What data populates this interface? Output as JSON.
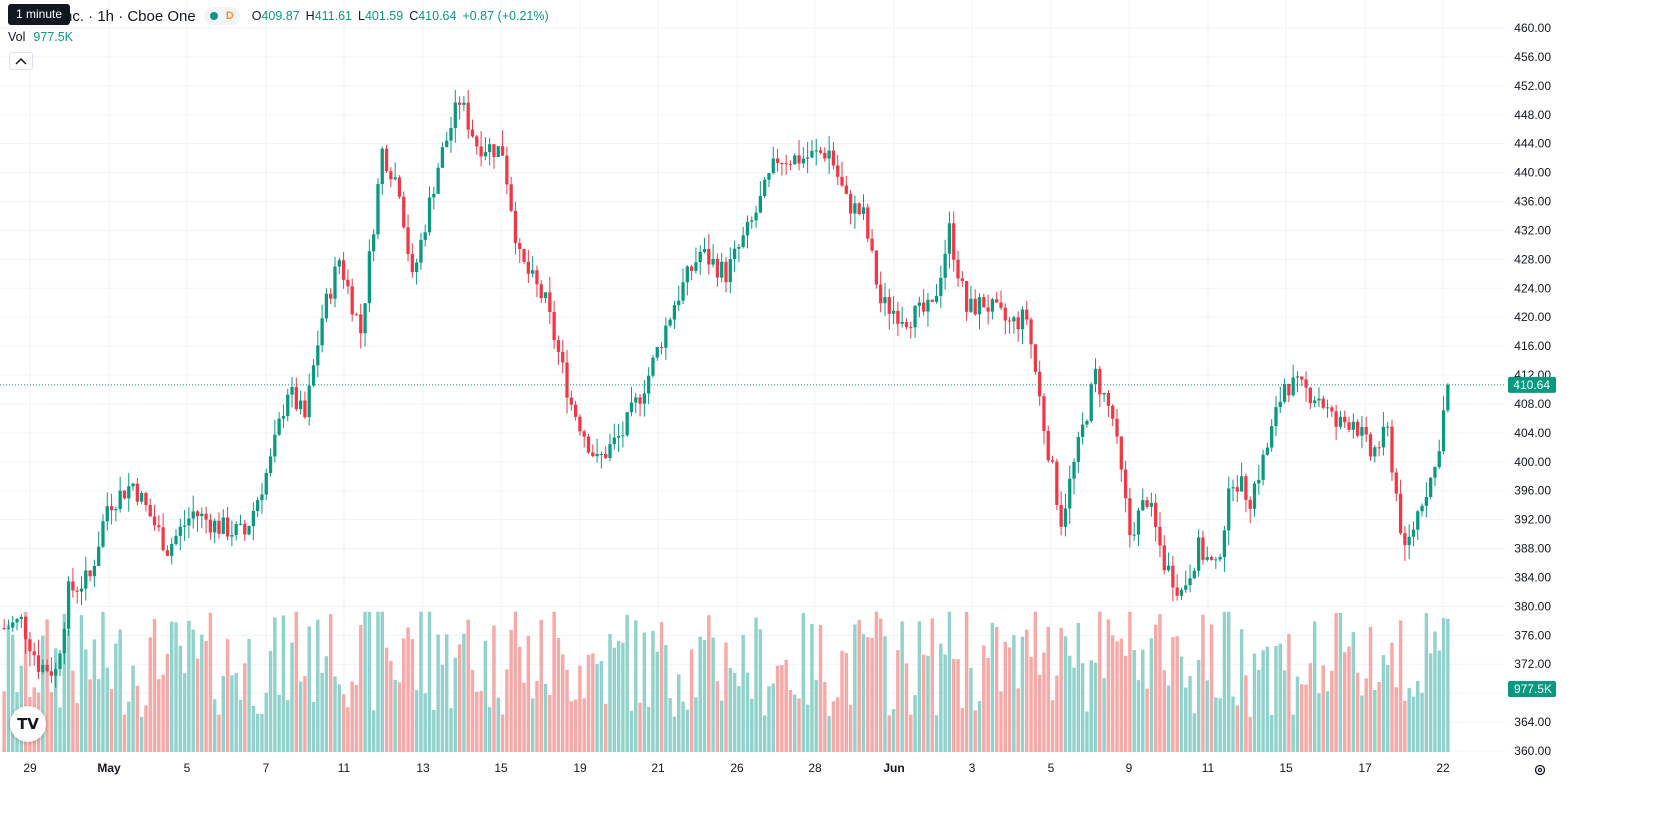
{
  "tooltip": {
    "interval_label": "1 minute"
  },
  "legend": {
    "title": "nc. · 1h · Cboe One",
    "dot_status": "market-open-dot",
    "d_label": "D",
    "open_label": "O",
    "open": "409.87",
    "high_label": "H",
    "high": "411.61",
    "low_label": "L",
    "low": "401.59",
    "close_label": "C",
    "close": "410.64",
    "change": "+0.87 (+0.21%)"
  },
  "volume_legend": {
    "label": "Vol",
    "value": "977.5K"
  },
  "collapse_icon": "chevron-up-icon",
  "logo": {
    "text": "TV"
  },
  "price_axis": {
    "ticks": [
      "460.00",
      "456.00",
      "452.00",
      "448.00",
      "444.00",
      "440.00",
      "436.00",
      "432.00",
      "428.00",
      "424.00",
      "420.00",
      "416.00",
      "412.00",
      "408.00",
      "404.00",
      "400.00",
      "396.00",
      "392.00",
      "388.00",
      "384.00",
      "380.00",
      "376.00",
      "372.00",
      "368.00",
      "364.00",
      "360.00"
    ],
    "last_price_label": "410.64",
    "last_volume_label": "977.5K"
  },
  "time_axis": {
    "labels": [
      "29",
      "May",
      "5",
      "7",
      "11",
      "13",
      "15",
      "19",
      "21",
      "26",
      "28",
      "Jun",
      "3",
      "5",
      "9",
      "11",
      "15",
      "17",
      "22"
    ],
    "bold_labels": [
      "May",
      "Jun"
    ]
  },
  "colors": {
    "up": "#089981",
    "down": "#f23645",
    "vol_up": "#92d2cc",
    "vol_down": "#f7a9a7",
    "grid": "#f0f3fa",
    "axis_bg": "#ffffff",
    "last_price": "#089981"
  },
  "chart_data": {
    "type": "candlestick",
    "timeframe": "1h",
    "ylim": [
      360,
      460
    ],
    "last_price": 410.64,
    "anchors": [
      {
        "i": 0,
        "p": 377
      },
      {
        "i": 4,
        "p": 378
      },
      {
        "i": 8,
        "p": 372
      },
      {
        "i": 12,
        "p": 371
      },
      {
        "i": 15,
        "p": 382
      },
      {
        "i": 20,
        "p": 384
      },
      {
        "i": 24,
        "p": 394
      },
      {
        "i": 30,
        "p": 397
      },
      {
        "i": 38,
        "p": 388
      },
      {
        "i": 44,
        "p": 393
      },
      {
        "i": 50,
        "p": 391
      },
      {
        "i": 56,
        "p": 390
      },
      {
        "i": 62,
        "p": 400
      },
      {
        "i": 66,
        "p": 410
      },
      {
        "i": 70,
        "p": 406
      },
      {
        "i": 74,
        "p": 420
      },
      {
        "i": 78,
        "p": 428
      },
      {
        "i": 83,
        "p": 418
      },
      {
        "i": 88,
        "p": 443
      },
      {
        "i": 92,
        "p": 438
      },
      {
        "i": 95,
        "p": 425
      },
      {
        "i": 101,
        "p": 441
      },
      {
        "i": 106,
        "p": 450
      },
      {
        "i": 110,
        "p": 444
      },
      {
        "i": 116,
        "p": 443
      },
      {
        "i": 120,
        "p": 428
      },
      {
        "i": 126,
        "p": 422
      },
      {
        "i": 132,
        "p": 408
      },
      {
        "i": 138,
        "p": 400
      },
      {
        "i": 144,
        "p": 404
      },
      {
        "i": 150,
        "p": 412
      },
      {
        "i": 156,
        "p": 422
      },
      {
        "i": 162,
        "p": 429
      },
      {
        "i": 168,
        "p": 426
      },
      {
        "i": 174,
        "p": 433
      },
      {
        "i": 180,
        "p": 442
      },
      {
        "i": 186,
        "p": 442
      },
      {
        "i": 192,
        "p": 443
      },
      {
        "i": 196,
        "p": 436
      },
      {
        "i": 200,
        "p": 434
      },
      {
        "i": 204,
        "p": 422
      },
      {
        "i": 210,
        "p": 420
      },
      {
        "i": 216,
        "p": 421
      },
      {
        "i": 220,
        "p": 432
      },
      {
        "i": 224,
        "p": 421
      },
      {
        "i": 228,
        "p": 422
      },
      {
        "i": 234,
        "p": 419
      },
      {
        "i": 238,
        "p": 420
      },
      {
        "i": 242,
        "p": 405
      },
      {
        "i": 246,
        "p": 392
      },
      {
        "i": 250,
        "p": 402
      },
      {
        "i": 254,
        "p": 412
      },
      {
        "i": 258,
        "p": 406
      },
      {
        "i": 262,
        "p": 390
      },
      {
        "i": 266,
        "p": 395
      },
      {
        "i": 270,
        "p": 386
      },
      {
        "i": 274,
        "p": 382
      },
      {
        "i": 278,
        "p": 388
      },
      {
        "i": 282,
        "p": 385
      },
      {
        "i": 286,
        "p": 398
      },
      {
        "i": 290,
        "p": 395
      },
      {
        "i": 294,
        "p": 402
      },
      {
        "i": 298,
        "p": 411
      },
      {
        "i": 302,
        "p": 410
      },
      {
        "i": 306,
        "p": 409
      },
      {
        "i": 310,
        "p": 405
      },
      {
        "i": 314,
        "p": 406
      },
      {
        "i": 318,
        "p": 401
      },
      {
        "i": 322,
        "p": 404
      },
      {
        "i": 326,
        "p": 387
      },
      {
        "i": 330,
        "p": 395
      },
      {
        "i": 333,
        "p": 399
      },
      {
        "i": 336,
        "p": 410.64
      }
    ],
    "bar_count": 337,
    "volume_last": "977.5K"
  }
}
